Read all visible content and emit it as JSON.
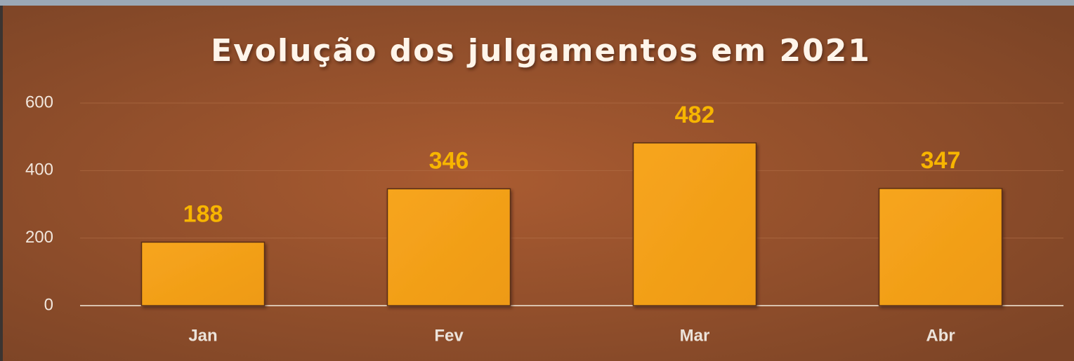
{
  "chart_data": {
    "type": "bar",
    "title": "Evolução dos julgamentos em 2021",
    "categories": [
      "Jan",
      "Fev",
      "Mar",
      "Abr"
    ],
    "values": [
      188,
      346,
      482,
      347
    ],
    "color": "#f5a01a",
    "ylim": [
      0,
      600
    ],
    "yticks": [
      0,
      200,
      400,
      600
    ],
    "grid": true
  }
}
